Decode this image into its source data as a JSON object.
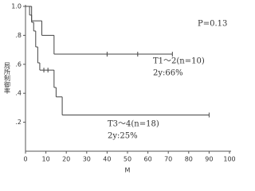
{
  "chart_data": {
    "type": "step",
    "ylabel": "局所制御率",
    "xlabel": "M",
    "annotation": "P=0.13",
    "series": [
      {
        "name": "T1～2(n=10)",
        "note": "2y:66%",
        "color": "#444444",
        "x": [
          0,
          3,
          8,
          14,
          72
        ],
        "values": [
          1.0,
          0.9,
          0.8,
          0.67,
          0.67
        ],
        "censored": [
          40,
          55,
          72
        ]
      },
      {
        "name": "T3～4(n=18)",
        "note": "2y:25%",
        "color": "#444444",
        "x": [
          0,
          2,
          3,
          4,
          5,
          6,
          7,
          14,
          15,
          18,
          90
        ],
        "values": [
          1.0,
          0.94,
          0.89,
          0.83,
          0.72,
          0.61,
          0.56,
          0.44,
          0.375,
          0.25,
          0.25
        ],
        "censored": [
          9,
          11,
          90
        ]
      }
    ],
    "xlim": [
      0,
      100
    ],
    "xticks": [
      0,
      10,
      20,
      30,
      40,
      50,
      60,
      70,
      80,
      90,
      100
    ],
    "ylim": [
      0,
      1.0
    ],
    "yticks": [
      {
        "value": 0.2,
        "label": ".2"
      },
      {
        "value": 0.4,
        "label": ".4"
      },
      {
        "value": 0.6,
        "label": ".6"
      },
      {
        "value": 0.8,
        "label": ".8"
      },
      {
        "value": 1.0,
        "label": "1.0"
      }
    ]
  }
}
